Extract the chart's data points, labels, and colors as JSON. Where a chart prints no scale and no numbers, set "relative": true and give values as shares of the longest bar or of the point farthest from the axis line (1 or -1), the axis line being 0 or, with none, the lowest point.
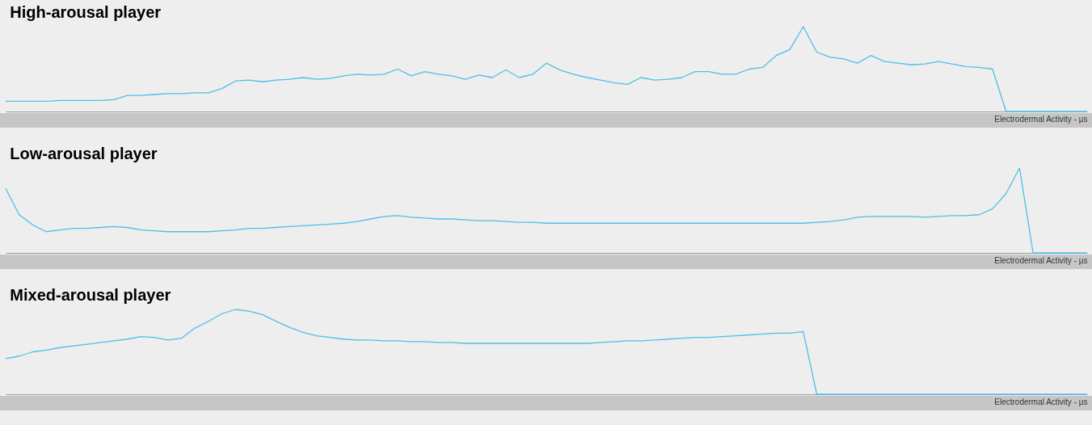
{
  "chart_data": [
    {
      "type": "line",
      "title": "High-arousal player",
      "xlabel": "Electrodermal Activity - μs",
      "relative": true,
      "tick_labels": false,
      "categories": [
        null,
        null,
        null,
        null,
        null,
        null,
        null,
        null,
        null,
        null,
        null,
        null,
        null,
        null,
        null,
        null,
        null,
        null,
        null,
        null,
        null,
        null,
        null,
        null,
        null,
        null,
        null,
        null,
        null,
        null,
        null,
        null,
        null,
        null,
        null,
        null,
        null,
        null,
        null,
        null,
        null,
        null,
        null,
        null,
        null,
        null,
        null,
        null,
        null,
        null,
        null,
        null,
        null,
        null,
        null,
        null,
        null,
        null,
        null,
        null,
        null,
        null,
        null,
        null,
        null,
        null,
        null,
        null,
        null,
        null,
        null,
        null,
        null,
        null,
        null,
        null,
        null,
        null,
        null,
        null,
        null
      ],
      "series": [
        {
          "color": "#4dbfe8",
          "values": [
            0.12,
            0.12,
            0.12,
            0.12,
            0.13,
            0.13,
            0.13,
            0.13,
            0.14,
            0.19,
            0.19,
            0.2,
            0.21,
            0.21,
            0.22,
            0.22,
            0.27,
            0.36,
            0.37,
            0.35,
            0.37,
            0.38,
            0.4,
            0.38,
            0.39,
            0.42,
            0.44,
            0.43,
            0.44,
            0.5,
            0.42,
            0.47,
            0.44,
            0.42,
            0.38,
            0.43,
            0.4,
            0.49,
            0.4,
            0.44,
            0.57,
            0.49,
            0.44,
            0.4,
            0.37,
            0.34,
            0.32,
            0.4,
            0.37,
            0.38,
            0.4,
            0.47,
            0.47,
            0.44,
            0.44,
            0.5,
            0.52,
            0.66,
            0.73,
            1.0,
            0.7,
            0.64,
            0.62,
            0.57,
            0.66,
            0.59,
            0.57,
            0.55,
            0.56,
            0.59,
            0.56,
            0.53,
            0.52,
            0.5,
            0,
            0,
            0,
            0,
            0,
            0,
            0
          ]
        }
      ]
    },
    {
      "type": "line",
      "title": "Low-arousal player",
      "xlabel": "Electrodermal Activity - μs",
      "relative": true,
      "tick_labels": false,
      "categories": [
        null,
        null,
        null,
        null,
        null,
        null,
        null,
        null,
        null,
        null,
        null,
        null,
        null,
        null,
        null,
        null,
        null,
        null,
        null,
        null,
        null,
        null,
        null,
        null,
        null,
        null,
        null,
        null,
        null,
        null,
        null,
        null,
        null,
        null,
        null,
        null,
        null,
        null,
        null,
        null,
        null,
        null,
        null,
        null,
        null,
        null,
        null,
        null,
        null,
        null,
        null,
        null,
        null,
        null,
        null,
        null,
        null,
        null,
        null,
        null,
        null,
        null,
        null,
        null,
        null,
        null,
        null,
        null,
        null,
        null,
        null,
        null,
        null,
        null,
        null,
        null,
        null,
        null,
        null,
        null,
        null
      ],
      "series": [
        {
          "color": "#4dbfe8",
          "values": [
            0.76,
            0.45,
            0.33,
            0.25,
            0.27,
            0.29,
            0.29,
            0.3,
            0.31,
            0.3,
            0.27,
            0.26,
            0.25,
            0.25,
            0.25,
            0.25,
            0.26,
            0.27,
            0.29,
            0.29,
            0.3,
            0.31,
            0.32,
            0.33,
            0.34,
            0.35,
            0.37,
            0.4,
            0.43,
            0.44,
            0.42,
            0.41,
            0.4,
            0.4,
            0.39,
            0.38,
            0.38,
            0.37,
            0.36,
            0.36,
            0.35,
            0.35,
            0.35,
            0.35,
            0.35,
            0.35,
            0.35,
            0.35,
            0.35,
            0.35,
            0.35,
            0.35,
            0.35,
            0.35,
            0.35,
            0.35,
            0.35,
            0.35,
            0.35,
            0.35,
            0.36,
            0.37,
            0.39,
            0.42,
            0.43,
            0.43,
            0.43,
            0.43,
            0.42,
            0.43,
            0.44,
            0.44,
            0.45,
            0.52,
            0.7,
            1.0,
            0,
            0,
            0,
            0,
            0
          ]
        }
      ]
    },
    {
      "type": "line",
      "title": "Mixed-arousal player",
      "xlabel": "Electrodermal Activity - μs",
      "relative": true,
      "tick_labels": false,
      "categories": [
        null,
        null,
        null,
        null,
        null,
        null,
        null,
        null,
        null,
        null,
        null,
        null,
        null,
        null,
        null,
        null,
        null,
        null,
        null,
        null,
        null,
        null,
        null,
        null,
        null,
        null,
        null,
        null,
        null,
        null,
        null,
        null,
        null,
        null,
        null,
        null,
        null,
        null,
        null,
        null,
        null,
        null,
        null,
        null,
        null,
        null,
        null,
        null,
        null,
        null,
        null,
        null,
        null,
        null,
        null,
        null,
        null,
        null,
        null,
        null,
        null,
        null,
        null,
        null,
        null,
        null,
        null,
        null,
        null,
        null,
        null,
        null,
        null,
        null,
        null,
        null,
        null,
        null,
        null,
        null,
        null
      ],
      "series": [
        {
          "color": "#4dbfe8",
          "values": [
            0.42,
            0.45,
            0.5,
            0.52,
            0.55,
            0.57,
            0.59,
            0.61,
            0.63,
            0.65,
            0.68,
            0.67,
            0.64,
            0.66,
            0.78,
            0.86,
            0.95,
            1.0,
            0.98,
            0.94,
            0.86,
            0.79,
            0.73,
            0.69,
            0.67,
            0.65,
            0.64,
            0.64,
            0.63,
            0.63,
            0.62,
            0.62,
            0.61,
            0.61,
            0.6,
            0.6,
            0.6,
            0.6,
            0.6,
            0.6,
            0.6,
            0.6,
            0.6,
            0.6,
            0.61,
            0.62,
            0.63,
            0.63,
            0.64,
            0.65,
            0.66,
            0.67,
            0.67,
            0.68,
            0.69,
            0.7,
            0.71,
            0.72,
            0.72,
            0.74,
            0,
            0,
            0,
            0,
            0,
            0,
            0,
            0,
            0,
            0,
            0,
            0,
            0,
            0,
            0,
            0,
            0,
            0,
            0,
            0,
            0
          ]
        }
      ]
    }
  ]
}
